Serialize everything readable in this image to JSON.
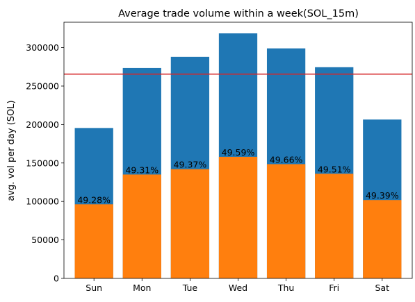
{
  "chart_data": {
    "type": "bar",
    "title": "Average trade volume within a week(SOL_15m)",
    "xlabel": "",
    "ylabel": "avg. vol per day (SOL)",
    "categories": [
      "Sun",
      "Mon",
      "Tue",
      "Wed",
      "Thu",
      "Fri",
      "Sat"
    ],
    "series": [
      {
        "values": [
          195500,
          273500,
          288000,
          318500,
          299000,
          274500,
          206500
        ],
        "color": "#1f77b4"
      },
      {
        "values": [
          96300,
          135000,
          142000,
          158000,
          148500,
          136000,
          101800
        ],
        "color": "#ff7f0e"
      }
    ],
    "bar_labels": [
      "49.28%",
      "49.31%",
      "49.37%",
      "49.59%",
      "49.66%",
      "49.51%",
      "49.39%"
    ],
    "hline": {
      "y": 265500,
      "color": "#d62728"
    },
    "ylim": [
      0,
      333000
    ],
    "yticks": [
      0,
      50000,
      100000,
      150000,
      200000,
      250000,
      300000
    ],
    "grid": false
  }
}
